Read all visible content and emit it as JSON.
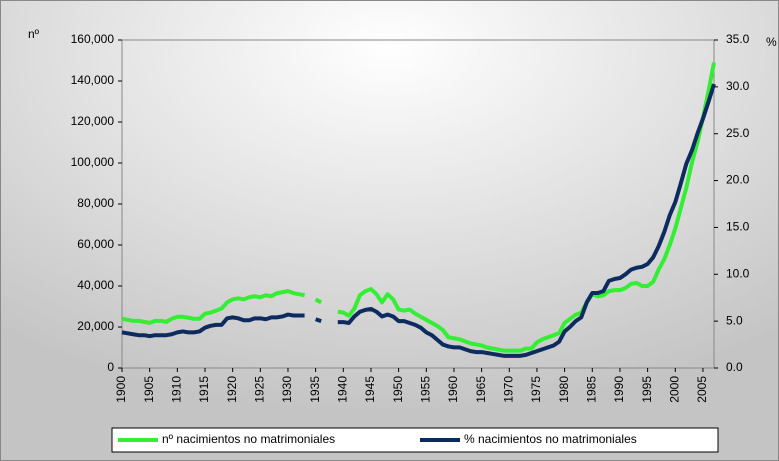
{
  "chart_data": {
    "type": "line",
    "y_label": "nº",
    "y2_label": "%",
    "x": [
      1900,
      1901,
      1902,
      1903,
      1904,
      1905,
      1906,
      1907,
      1908,
      1909,
      1910,
      1911,
      1912,
      1913,
      1914,
      1915,
      1916,
      1917,
      1918,
      1919,
      1920,
      1921,
      1922,
      1923,
      1924,
      1925,
      1926,
      1927,
      1928,
      1929,
      1930,
      1931,
      1932,
      1933,
      1934,
      1935,
      1936,
      1937,
      1938,
      1939,
      1940,
      1941,
      1942,
      1943,
      1944,
      1945,
      1946,
      1947,
      1948,
      1949,
      1950,
      1951,
      1952,
      1953,
      1954,
      1955,
      1956,
      1957,
      1958,
      1959,
      1960,
      1961,
      1962,
      1963,
      1964,
      1965,
      1966,
      1967,
      1968,
      1969,
      1970,
      1971,
      1972,
      1973,
      1974,
      1975,
      1976,
      1977,
      1978,
      1979,
      1980,
      1981,
      1982,
      1983,
      1984,
      1985,
      1986,
      1987,
      1988,
      1989,
      1990,
      1991,
      1992,
      1993,
      1994,
      1995,
      1996,
      1997,
      1998,
      1999,
      2000,
      2001,
      2002,
      2003,
      2004,
      2005,
      2006,
      2007
    ],
    "series": [
      {
        "name": "nº nacimientos no matrimoniales",
        "color": "#33ee33",
        "values": [
          24000,
          23500,
          23000,
          23000,
          22500,
          22000,
          23000,
          23000,
          22500,
          24000,
          25000,
          25000,
          24500,
          24000,
          24000,
          26500,
          27000,
          28000,
          29000,
          32000,
          33500,
          34000,
          33500,
          34500,
          35000,
          34500,
          35500,
          35000,
          36500,
          37000,
          37500,
          36500,
          36000,
          35500,
          null,
          33500,
          32000,
          null,
          null,
          27500,
          27000,
          25500,
          29000,
          35500,
          37500,
          38500,
          36000,
          32000,
          36000,
          33500,
          28500,
          28000,
          28500,
          26500,
          25000,
          23500,
          22000,
          20500,
          18500,
          15000,
          14500,
          14000,
          13000,
          12000,
          11500,
          11000,
          10000,
          9500,
          9000,
          8500,
          8500,
          8500,
          8500,
          9500,
          9500,
          12500,
          14000,
          15000,
          16000,
          17000,
          22000,
          24000,
          26000,
          27000,
          32000,
          36000,
          35000,
          35500,
          37500,
          38000,
          38000,
          39000,
          41000,
          41500,
          40000,
          40000,
          42000,
          48000,
          53000,
          60000,
          68000,
          78000,
          88000,
          100000,
          110000,
          122000,
          135000,
          149000
        ]
      },
      {
        "name": "% nacimientos no matrimoniales",
        "color": "#0d2b5e",
        "axis": "y2",
        "values": [
          3.8,
          3.7,
          3.6,
          3.5,
          3.5,
          3.4,
          3.5,
          3.5,
          3.5,
          3.6,
          3.8,
          3.9,
          3.8,
          3.8,
          3.9,
          4.3,
          4.5,
          4.6,
          4.6,
          5.3,
          5.4,
          5.3,
          5.1,
          5.1,
          5.3,
          5.3,
          5.2,
          5.4,
          5.4,
          5.5,
          5.7,
          5.6,
          5.6,
          5.6,
          null,
          5.2,
          5.0,
          null,
          null,
          4.9,
          4.9,
          4.8,
          5.5,
          6.0,
          6.2,
          6.3,
          6.0,
          5.5,
          5.7,
          5.5,
          5.0,
          5.0,
          4.8,
          4.6,
          4.3,
          3.8,
          3.5,
          3.0,
          2.5,
          2.3,
          2.2,
          2.2,
          2.0,
          1.8,
          1.7,
          1.7,
          1.6,
          1.5,
          1.4,
          1.3,
          1.3,
          1.3,
          1.3,
          1.4,
          1.6,
          1.8,
          2.0,
          2.2,
          2.4,
          2.8,
          3.9,
          4.4,
          5.0,
          5.4,
          7.0,
          8.0,
          8.0,
          8.2,
          9.3,
          9.5,
          9.6,
          10.0,
          10.5,
          10.7,
          10.8,
          11.1,
          11.8,
          13.0,
          14.5,
          16.3,
          17.7,
          19.7,
          21.8,
          23.2,
          25.0,
          26.6,
          28.4,
          30.3
        ]
      }
    ],
    "xlim": [
      1900,
      2007
    ],
    "xticks": [
      1900,
      1905,
      1910,
      1915,
      1920,
      1925,
      1930,
      1935,
      1940,
      1945,
      1950,
      1955,
      1960,
      1965,
      1970,
      1975,
      1980,
      1985,
      1990,
      1995,
      2000,
      2005
    ],
    "ylim": [
      0,
      160000
    ],
    "yticks": [
      0,
      {
        "value": 20000,
        "label": "20,000"
      },
      {
        "value": 40000,
        "label": "40,000"
      },
      {
        "value": 60000,
        "label": "60,000"
      },
      {
        "value": 80000,
        "label": "80,000"
      },
      {
        "value": 100000,
        "label": "100,000"
      },
      {
        "value": 120000,
        "label": "120,000"
      },
      {
        "value": 140000,
        "label": "140,000"
      },
      {
        "value": 160000,
        "label": "160,000"
      }
    ],
    "y2lim": [
      0,
      35
    ],
    "y2ticks": [
      {
        "value": 0,
        "label": "0.0"
      },
      {
        "value": 5,
        "label": "5.0"
      },
      {
        "value": 10,
        "label": "10.0"
      },
      {
        "value": 15,
        "label": "15.0"
      },
      {
        "value": 20,
        "label": "20.0"
      },
      {
        "value": 25,
        "label": "25.0"
      },
      {
        "value": 30,
        "label": "30.0"
      },
      {
        "value": 35,
        "label": "35.0"
      }
    ],
    "legend": "bottom"
  }
}
